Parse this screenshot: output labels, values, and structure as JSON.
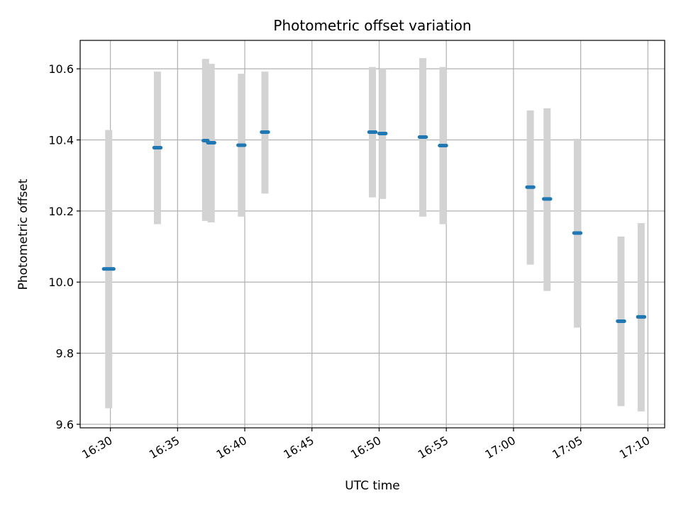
{
  "chart_data": {
    "type": "scatter",
    "title": "Photometric offset variation",
    "xlabel": "UTC time",
    "ylabel": "Photometric offset",
    "xlim": [
      "16:27:45",
      "17:11:15"
    ],
    "ylim": [
      9.59,
      10.68
    ],
    "xticks": [
      "16:30",
      "16:35",
      "16:40",
      "16:45",
      "16:50",
      "16:55",
      "17:00",
      "17:05",
      "17:10"
    ],
    "yticks": [
      9.6,
      9.8,
      10.0,
      10.2,
      10.4,
      10.6
    ],
    "ytick_labels": [
      "9.6",
      "9.8",
      "10.0",
      "10.2",
      "10.4",
      "10.6"
    ],
    "grid": true,
    "error_bar_color": "#d3d3d3",
    "marker_color": "#1f77b4",
    "points": [
      {
        "t_start": "16:29:30",
        "t_end": "16:30:15",
        "value": 10.037,
        "err_low": 9.645,
        "err_high": 10.428
      },
      {
        "t_start": "16:33:15",
        "t_end": "16:33:45",
        "value": 10.378,
        "err_low": 10.163,
        "err_high": 10.592
      },
      {
        "t_start": "16:36:55",
        "t_end": "16:37:15",
        "value": 10.398,
        "err_low": 10.172,
        "err_high": 10.628
      },
      {
        "t_start": "16:37:15",
        "t_end": "16:37:45",
        "value": 10.392,
        "err_low": 10.168,
        "err_high": 10.614
      },
      {
        "t_start": "16:39:30",
        "t_end": "16:40:00",
        "value": 10.385,
        "err_low": 10.184,
        "err_high": 10.586
      },
      {
        "t_start": "16:41:15",
        "t_end": "16:41:45",
        "value": 10.422,
        "err_low": 10.249,
        "err_high": 10.592
      },
      {
        "t_start": "16:49:15",
        "t_end": "16:49:45",
        "value": 10.422,
        "err_low": 10.238,
        "err_high": 10.605
      },
      {
        "t_start": "16:50:00",
        "t_end": "16:50:30",
        "value": 10.418,
        "err_low": 10.234,
        "err_high": 10.6
      },
      {
        "t_start": "16:53:00",
        "t_end": "16:53:30",
        "value": 10.408,
        "err_low": 10.184,
        "err_high": 10.63
      },
      {
        "t_start": "16:54:30",
        "t_end": "16:55:00",
        "value": 10.384,
        "err_low": 10.163,
        "err_high": 10.605
      },
      {
        "t_start": "17:01:00",
        "t_end": "17:01:30",
        "value": 10.267,
        "err_low": 10.049,
        "err_high": 10.483
      },
      {
        "t_start": "17:02:15",
        "t_end": "17:02:45",
        "value": 10.234,
        "err_low": 9.975,
        "err_high": 10.489
      },
      {
        "t_start": "17:04:30",
        "t_end": "17:05:00",
        "value": 10.138,
        "err_low": 9.872,
        "err_high": 10.403
      },
      {
        "t_start": "17:07:45",
        "t_end": "17:08:15",
        "value": 9.89,
        "err_low": 9.651,
        "err_high": 10.128
      },
      {
        "t_start": "17:09:15",
        "t_end": "17:09:45",
        "value": 9.902,
        "err_low": 9.636,
        "err_high": 10.166
      }
    ]
  }
}
